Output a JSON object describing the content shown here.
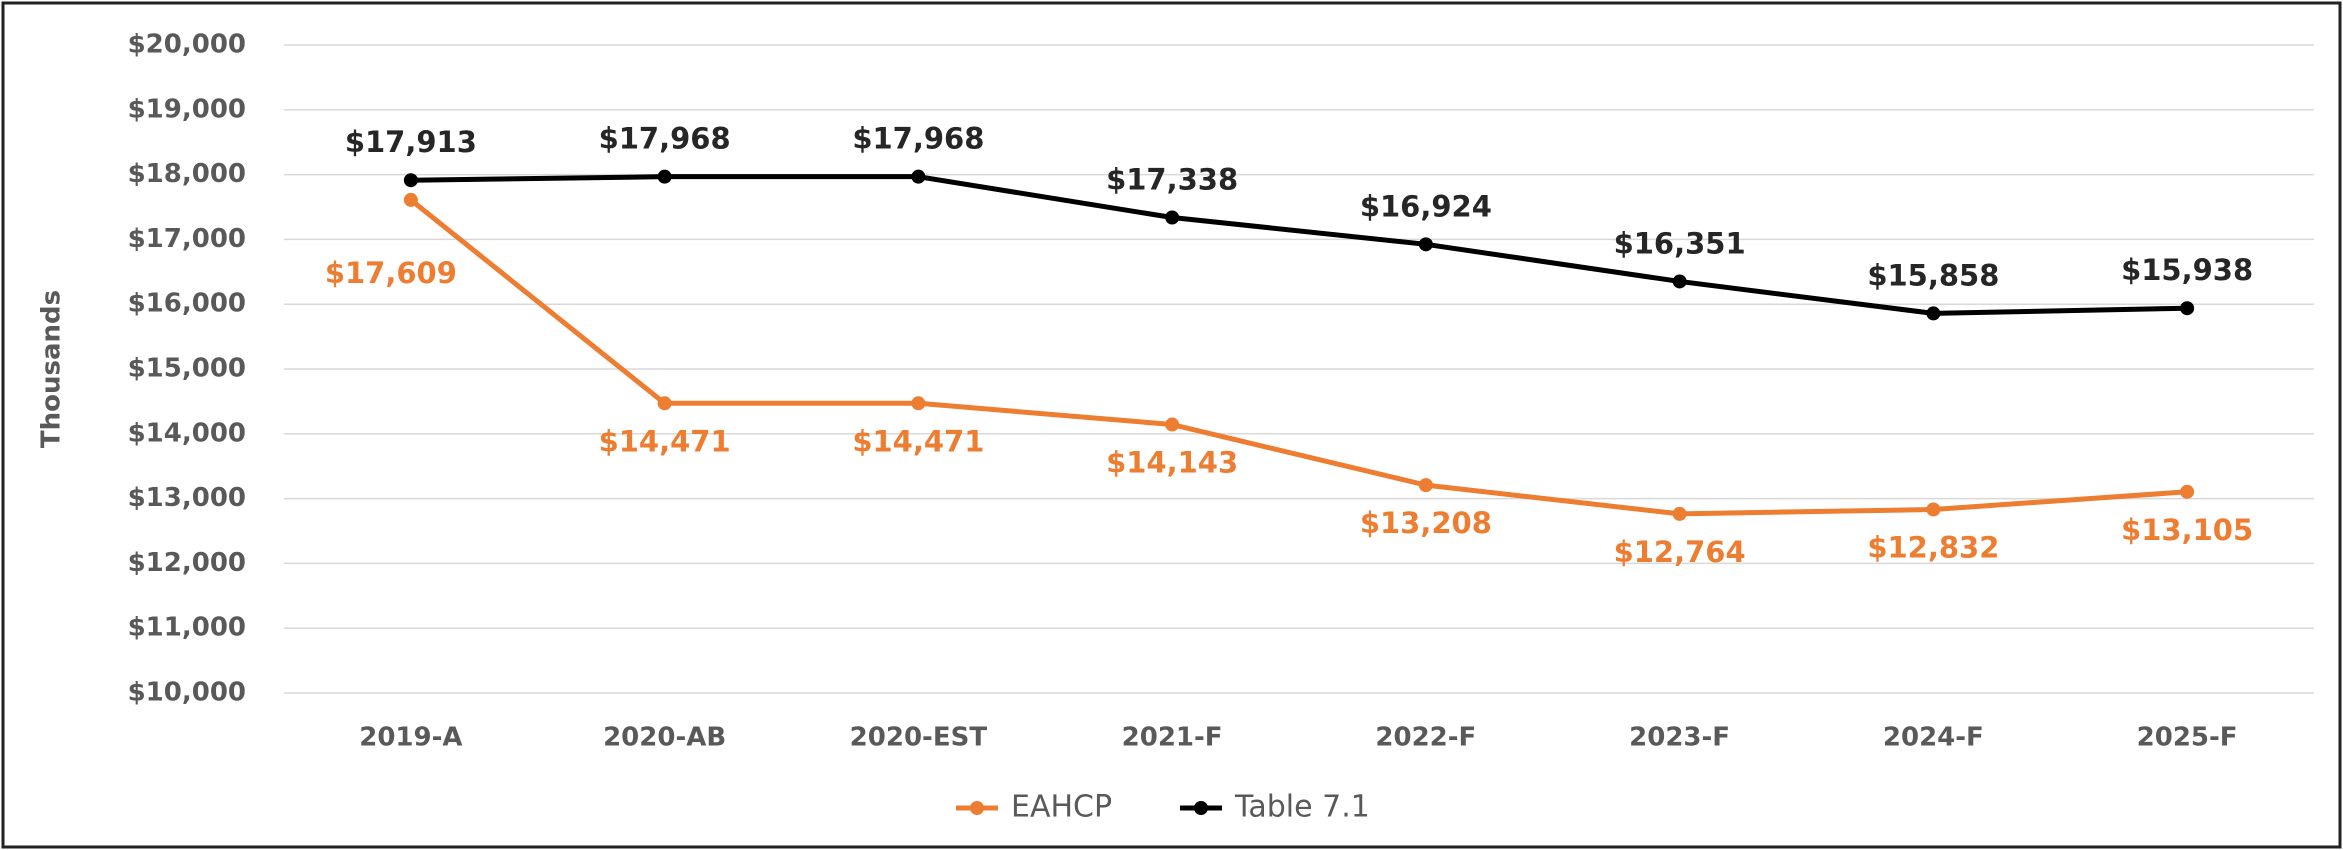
{
  "chart_data": {
    "type": "line",
    "ylabel": "Thousands",
    "categories": [
      "2019-A",
      "2020-AB",
      "2020-EST",
      "2021-F",
      "2022-F",
      "2023-F",
      "2024-F",
      "2025-F"
    ],
    "series": [
      {
        "name": "EAHCP",
        "color": "#ED7D31",
        "values": [
          17609,
          14471,
          14471,
          14143,
          13208,
          12764,
          12832,
          13105
        ],
        "value_labels": [
          "$17,609",
          "$14,471",
          "$14,471",
          "$14,143",
          "$13,208",
          "$12,764",
          "$12,832",
          "$13,105"
        ]
      },
      {
        "name": "Table 7.1",
        "color": "#000000",
        "values": [
          17913,
          17968,
          17968,
          17338,
          16924,
          16351,
          15858,
          15938
        ],
        "value_labels": [
          "$17,913",
          "$17,968",
          "$17,968",
          "$17,338",
          "$16,924",
          "$16,351",
          "$15,858",
          "$15,938"
        ]
      }
    ],
    "ylim": [
      10000,
      20000
    ],
    "yticks": [
      {
        "value": 10000,
        "label": "$10,000"
      },
      {
        "value": 11000,
        "label": "$11,000"
      },
      {
        "value": 12000,
        "label": "$12,000"
      },
      {
        "value": 13000,
        "label": "$13,000"
      },
      {
        "value": 14000,
        "label": "$14,000"
      },
      {
        "value": 15000,
        "label": "$15,000"
      },
      {
        "value": 16000,
        "label": "$16,000"
      },
      {
        "value": 17000,
        "label": "$17,000"
      },
      {
        "value": 18000,
        "label": "$18,000"
      },
      {
        "value": 19000,
        "label": "$19,000"
      },
      {
        "value": 20000,
        "label": "$20,000"
      }
    ],
    "grid": true,
    "legend": "bottom"
  }
}
